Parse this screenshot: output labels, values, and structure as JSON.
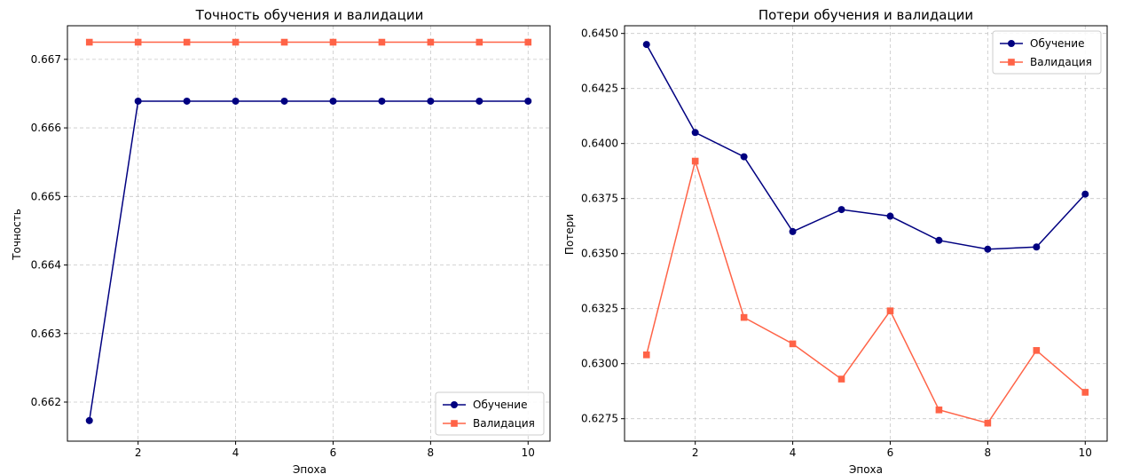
{
  "chart_data": [
    {
      "type": "line",
      "title": "Точность обучения и валидации",
      "xlabel": "Эпоха",
      "ylabel": "Точность",
      "x": [
        1,
        2,
        3,
        4,
        5,
        6,
        7,
        8,
        9,
        10
      ],
      "xlim": [
        0.55,
        10.45
      ],
      "ylim": [
        0.66143,
        0.66749
      ],
      "xticks": [
        2,
        4,
        6,
        8,
        10
      ],
      "yticks": [
        0.662,
        0.663,
        0.664,
        0.665,
        0.666,
        0.667
      ],
      "ytick_labels": [
        "0.662",
        "0.663",
        "0.664",
        "0.665",
        "0.666",
        "0.667"
      ],
      "grid": true,
      "legend_position": "lower-right",
      "series": [
        {
          "name": "Обучение",
          "color": "#000080",
          "marker": "circle",
          "values": [
            0.66173,
            0.66639,
            0.66639,
            0.66639,
            0.66639,
            0.66639,
            0.66639,
            0.66639,
            0.66639,
            0.66639
          ]
        },
        {
          "name": "Валидация",
          "color": "#ff6347",
          "marker": "square",
          "values": [
            0.66725,
            0.66725,
            0.66725,
            0.66725,
            0.66725,
            0.66725,
            0.66725,
            0.66725,
            0.66725,
            0.66725
          ]
        }
      ]
    },
    {
      "type": "line",
      "title": "Потери обучения и валидации",
      "xlabel": "Эпоха",
      "ylabel": "Потери",
      "x": [
        1,
        2,
        3,
        4,
        5,
        6,
        7,
        8,
        9,
        10
      ],
      "xlim": [
        0.55,
        10.45
      ],
      "ylim": [
        0.62648,
        0.64535
      ],
      "xticks": [
        2,
        4,
        6,
        8,
        10
      ],
      "yticks": [
        0.6275,
        0.63,
        0.6325,
        0.635,
        0.6375,
        0.64,
        0.6425,
        0.645
      ],
      "ytick_labels": [
        "0.6275",
        "0.6300",
        "0.6325",
        "0.6350",
        "0.6375",
        "0.6400",
        "0.6425",
        "0.6450"
      ],
      "grid": true,
      "legend_position": "top-right",
      "series": [
        {
          "name": "Обучение",
          "color": "#000080",
          "marker": "circle",
          "values": [
            0.6445,
            0.6405,
            0.6394,
            0.636,
            0.637,
            0.6367,
            0.6356,
            0.6352,
            0.6353,
            0.6377
          ]
        },
        {
          "name": "Валидация",
          "color": "#ff6347",
          "marker": "square",
          "values": [
            0.6304,
            0.6392,
            0.6321,
            0.6309,
            0.6293,
            0.6324,
            0.6279,
            0.6273,
            0.6306,
            0.6287
          ]
        }
      ]
    }
  ]
}
